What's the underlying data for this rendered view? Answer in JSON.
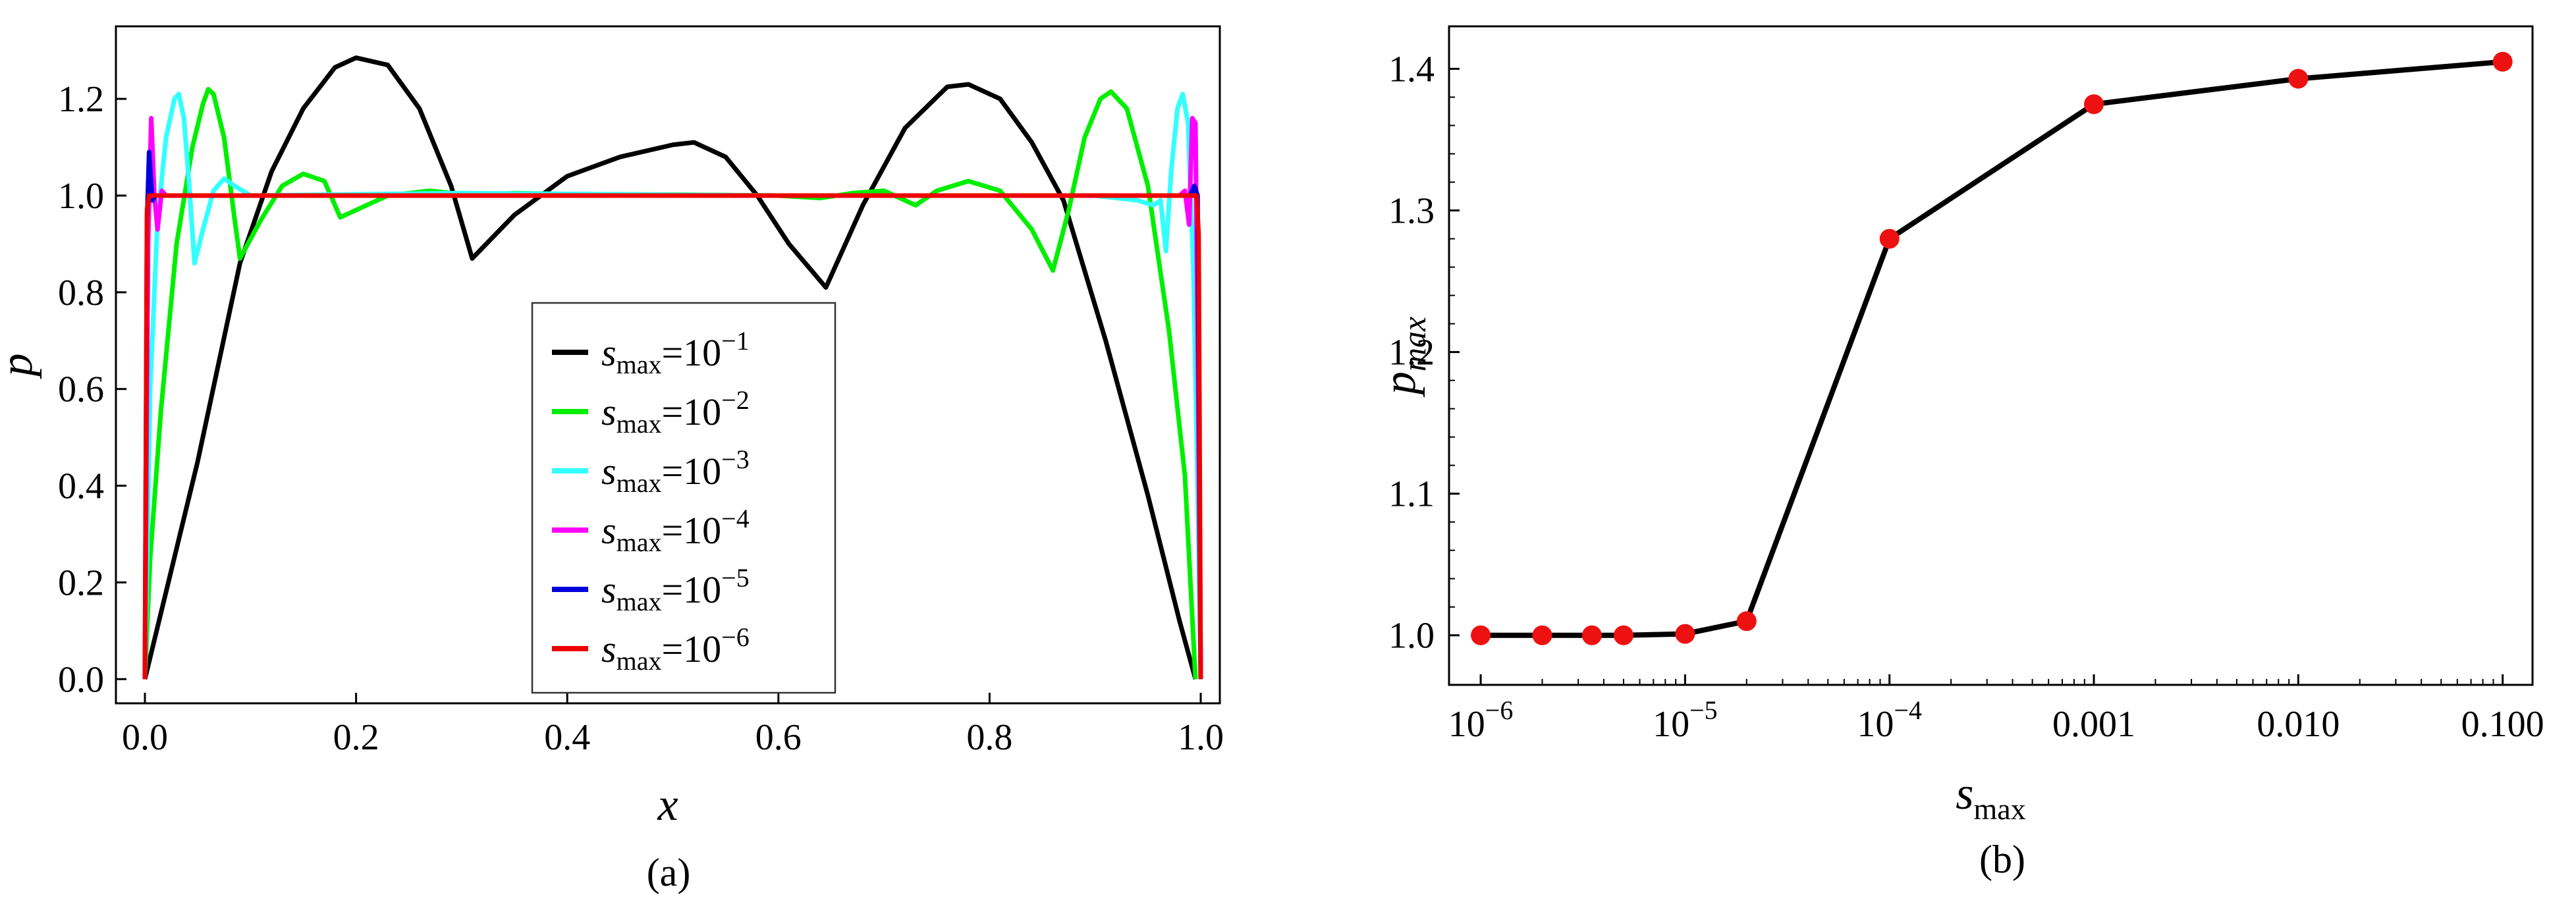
{
  "chart_data": [
    {
      "type": "line",
      "panel_label": "(a)",
      "xlabel": "x",
      "ylabel": "p",
      "xlim": [
        0,
        1
      ],
      "ylim": [
        -0.05,
        1.35
      ],
      "xticks": [
        {
          "value": 0.0,
          "label": "0.0"
        },
        {
          "value": 0.2,
          "label": "0.2"
        },
        {
          "value": 0.4,
          "label": "0.4"
        },
        {
          "value": 0.6,
          "label": "0.6"
        },
        {
          "value": 0.8,
          "label": "0.8"
        },
        {
          "value": 1.0,
          "label": "1.0"
        }
      ],
      "yticks": [
        {
          "value": 0.0,
          "label": "0.0"
        },
        {
          "value": 0.2,
          "label": "0.2"
        },
        {
          "value": 0.4,
          "label": "0.4"
        },
        {
          "value": 0.6,
          "label": "0.6"
        },
        {
          "value": 0.8,
          "label": "0.8"
        },
        {
          "value": 1.0,
          "label": "1.0"
        },
        {
          "value": 1.2,
          "label": "1.2"
        }
      ],
      "legend_position": "center",
      "series": [
        {
          "name_base": "s",
          "name_sub": "max",
          "name_mid": "=10",
          "name_exp": "−1",
          "color": "#000000",
          "points": [
            [
              0,
              0
            ],
            [
              0.05,
              0.45
            ],
            [
              0.09,
              0.86
            ],
            [
              0.12,
              1.05
            ],
            [
              0.15,
              1.18
            ],
            [
              0.18,
              1.265
            ],
            [
              0.2,
              1.285
            ],
            [
              0.23,
              1.27
            ],
            [
              0.26,
              1.18
            ],
            [
              0.29,
              1.02
            ],
            [
              0.31,
              0.87
            ],
            [
              0.35,
              0.96
            ],
            [
              0.4,
              1.04
            ],
            [
              0.45,
              1.08
            ],
            [
              0.5,
              1.105
            ],
            [
              0.52,
              1.11
            ],
            [
              0.55,
              1.08
            ],
            [
              0.58,
              1.0
            ],
            [
              0.61,
              0.9
            ],
            [
              0.645,
              0.81
            ],
            [
              0.68,
              0.98
            ],
            [
              0.72,
              1.14
            ],
            [
              0.76,
              1.225
            ],
            [
              0.78,
              1.23
            ],
            [
              0.81,
              1.2
            ],
            [
              0.84,
              1.11
            ],
            [
              0.87,
              0.99
            ],
            [
              0.91,
              0.7
            ],
            [
              0.95,
              0.38
            ],
            [
              0.98,
              0.12
            ],
            [
              0.995,
              0.0
            ]
          ]
        },
        {
          "name_base": "s",
          "name_sub": "max",
          "name_mid": "=10",
          "name_exp": "−2",
          "color": "#00ee00",
          "points": [
            [
              0,
              0
            ],
            [
              0.005,
              0.25
            ],
            [
              0.015,
              0.55
            ],
            [
              0.03,
              0.9
            ],
            [
              0.045,
              1.1
            ],
            [
              0.055,
              1.19
            ],
            [
              0.06,
              1.22
            ],
            [
              0.065,
              1.21
            ],
            [
              0.075,
              1.12
            ],
            [
              0.085,
              0.95
            ],
            [
              0.09,
              0.87
            ],
            [
              0.11,
              0.95
            ],
            [
              0.13,
              1.02
            ],
            [
              0.15,
              1.045
            ],
            [
              0.17,
              1.03
            ],
            [
              0.185,
              0.955
            ],
            [
              0.2,
              0.97
            ],
            [
              0.23,
              1.0
            ],
            [
              0.27,
              1.01
            ],
            [
              0.31,
              1.0
            ],
            [
              0.35,
              1.005
            ],
            [
              0.4,
              1.003
            ],
            [
              0.5,
              1.002
            ],
            [
              0.6,
              1.0
            ],
            [
              0.64,
              0.995
            ],
            [
              0.67,
              1.005
            ],
            [
              0.7,
              1.01
            ],
            [
              0.73,
              0.98
            ],
            [
              0.75,
              1.01
            ],
            [
              0.78,
              1.03
            ],
            [
              0.81,
              1.01
            ],
            [
              0.84,
              0.93
            ],
            [
              0.86,
              0.845
            ],
            [
              0.875,
              0.97
            ],
            [
              0.89,
              1.12
            ],
            [
              0.905,
              1.2
            ],
            [
              0.915,
              1.215
            ],
            [
              0.93,
              1.18
            ],
            [
              0.95,
              1.02
            ],
            [
              0.97,
              0.72
            ],
            [
              0.985,
              0.42
            ],
            [
              0.995,
              0.0
            ]
          ]
        },
        {
          "name_base": "s",
          "name_sub": "max",
          "name_mid": "=10",
          "name_exp": "−3",
          "color": "#33ffff",
          "points": [
            [
              0,
              0
            ],
            [
              0.005,
              0.6
            ],
            [
              0.012,
              0.95
            ],
            [
              0.02,
              1.12
            ],
            [
              0.028,
              1.2
            ],
            [
              0.032,
              1.21
            ],
            [
              0.037,
              1.16
            ],
            [
              0.042,
              1.02
            ],
            [
              0.047,
              0.86
            ],
            [
              0.055,
              0.93
            ],
            [
              0.065,
              1.01
            ],
            [
              0.075,
              1.035
            ],
            [
              0.085,
              1.02
            ],
            [
              0.1,
              1.0
            ],
            [
              0.3,
              1.005
            ],
            [
              0.6,
              1.0
            ],
            [
              0.9,
              1.0
            ],
            [
              0.94,
              0.99
            ],
            [
              0.955,
              0.98
            ],
            [
              0.962,
              0.99
            ],
            [
              0.967,
              0.885
            ],
            [
              0.972,
              1.05
            ],
            [
              0.978,
              1.18
            ],
            [
              0.983,
              1.21
            ],
            [
              0.988,
              1.15
            ],
            [
              0.993,
              0.85
            ],
            [
              0.997,
              0.4
            ],
            [
              1.0,
              0
            ]
          ]
        },
        {
          "name_base": "s",
          "name_sub": "max",
          "name_mid": "=10",
          "name_exp": "−4",
          "color": "#ff00ff",
          "points": [
            [
              0,
              0
            ],
            [
              0.003,
              0.9
            ],
            [
              0.006,
              1.16
            ],
            [
              0.009,
              1.0
            ],
            [
              0.012,
              0.93
            ],
            [
              0.016,
              1.01
            ],
            [
              0.02,
              1.0
            ],
            [
              0.98,
              1.0
            ],
            [
              0.985,
              1.01
            ],
            [
              0.989,
              0.94
            ],
            [
              0.992,
              1.16
            ],
            [
              0.995,
              1.15
            ],
            [
              0.998,
              0.5
            ],
            [
              1.0,
              0
            ]
          ]
        },
        {
          "name_base": "s",
          "name_sub": "max",
          "name_mid": "=10",
          "name_exp": "−5",
          "color": "#0000dd",
          "points": [
            [
              0,
              0
            ],
            [
              0.002,
              0.95
            ],
            [
              0.004,
              1.09
            ],
            [
              0.007,
              0.99
            ],
            [
              0.01,
              1.0
            ],
            [
              0.99,
              1.0
            ],
            [
              0.994,
              1.02
            ],
            [
              0.997,
              1.0
            ],
            [
              1.0,
              0
            ]
          ]
        },
        {
          "name_base": "s",
          "name_sub": "max",
          "name_mid": "=10",
          "name_exp": "−6",
          "color": "#ee0000",
          "points": [
            [
              0,
              0
            ],
            [
              0.002,
              0.97
            ],
            [
              0.004,
              1.0
            ],
            [
              0.996,
              1.0
            ],
            [
              0.998,
              0.92
            ],
            [
              1.0,
              0
            ]
          ]
        }
      ]
    },
    {
      "type": "line",
      "panel_label": "(b)",
      "xlabel_base": "s",
      "xlabel_sub": "max",
      "ylabel_base": "p",
      "ylabel_sub": "max",
      "xscale": "log",
      "xlim": [
        7e-07,
        0.14
      ],
      "ylim": [
        0.965,
        1.43
      ],
      "xticks": [
        {
          "value": 1e-06,
          "label": "",
          "base": "10",
          "exp": "−6"
        },
        {
          "value": 1e-05,
          "label": "",
          "base": "10",
          "exp": "−5"
        },
        {
          "value": 0.0001,
          "label": "",
          "base": "10",
          "exp": "−4"
        },
        {
          "value": 0.001,
          "label": "0.001"
        },
        {
          "value": 0.01,
          "label": "0.010"
        },
        {
          "value": 0.1,
          "label": "0.100"
        }
      ],
      "yticks": [
        {
          "value": 1.0,
          "label": "1.0"
        },
        {
          "value": 1.1,
          "label": "1.1"
        },
        {
          "value": 1.2,
          "label": "1.2"
        },
        {
          "value": 1.3,
          "label": "1.3"
        },
        {
          "value": 1.4,
          "label": "1.4"
        }
      ],
      "line_color": "#000000",
      "marker_color": "#ee1111",
      "x": [
        1e-06,
        2e-06,
        3.5e-06,
        5e-06,
        1e-05,
        2e-05,
        0.0001,
        0.001,
        0.01,
        0.1
      ],
      "y": [
        1.0,
        1.0,
        1.0,
        1.0,
        1.001,
        1.01,
        1.28,
        1.375,
        1.393,
        1.405
      ]
    }
  ]
}
